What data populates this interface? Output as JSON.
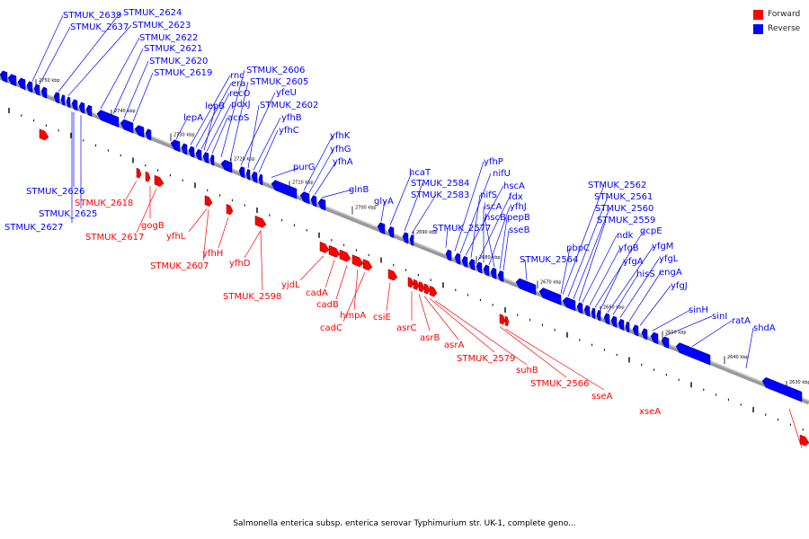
{
  "caption": "Salmonella enterica subsp. enterica serovar Typhimurium str. UK-1, complete geno...",
  "legend": [
    {
      "label": "Forward",
      "color": "#ff0000"
    },
    {
      "label": "Reverse",
      "color": "#0000ff"
    }
  ],
  "colors": {
    "forward": "#ff0000",
    "reverse": "#0000ff",
    "backbone": "#777777"
  },
  "scale_ticks": [
    "2750 kbp",
    "2740 kbp",
    "2730 kbp",
    "2720 kbp",
    "2710 kbp",
    "2700 kbp",
    "2690 kbp",
    "2680 kbp",
    "2670 kbp",
    "2660 kbp",
    "2650 kbp",
    "2640 kbp",
    "2630 kbp"
  ],
  "reverse_labels_above": [
    "STMUK_2639",
    "STMUK_2637",
    "STMUK_2624",
    "STMUK_2623",
    "STMUK_2622",
    "STMUK_2621",
    "STMUK_2620",
    "STMUK_2619",
    "lepA",
    "rnc",
    "era",
    "recO",
    "pdxJ",
    "acpS",
    "lepB",
    "STMUK_2606",
    "STMUK_2605",
    "yfeU",
    "STMUK_2602",
    "yfhB",
    "yfhC",
    "purG",
    "yfhK",
    "yfhG",
    "yfhA",
    "glnB",
    "glyA",
    "hcaT",
    "STMUK_2584",
    "STMUK_2583",
    "STMUK_2577",
    "yfhP",
    "nifU",
    "hscA",
    "nifS",
    "fdx",
    "iscA",
    "yfhJ",
    "hscB",
    "pepB",
    "sseB",
    "STMUK_2564",
    "pbpC",
    "STMUK_2562",
    "STMUK_2561",
    "STMUK_2560",
    "STMUK_2559",
    "ndk",
    "yfgB",
    "gcpE",
    "yfgA",
    "yfgM",
    "hisS",
    "yfgL",
    "engA",
    "yfgJ",
    "sinH",
    "sinI",
    "ratA",
    "shdA"
  ],
  "reverse_labels_below": [
    "STMUK_2626",
    "STMUK_2625",
    "STMUK_2627"
  ],
  "forward_labels": [
    "STMUK_2618",
    "gogB",
    "STMUK_2617",
    "yfhL",
    "yfhH",
    "STMUK_2607",
    "yfhD",
    "STMUK_2598",
    "yjdL",
    "cadA",
    "cadB",
    "hmpA",
    "cadC",
    "csiE",
    "asrC",
    "asrB",
    "asrA",
    "STMUK_2579",
    "suhB",
    "STMUK_2566",
    "sseA",
    "xseA"
  ]
}
